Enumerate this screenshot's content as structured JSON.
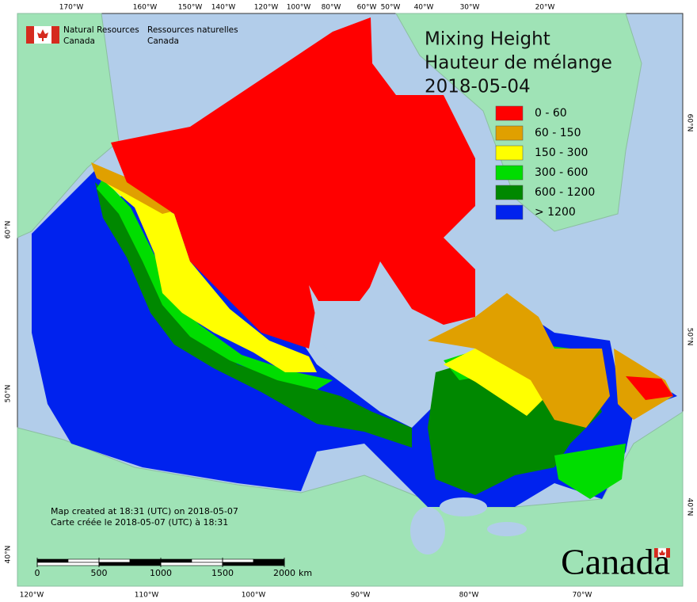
{
  "agency_en": [
    "Natural Resources",
    "Canada"
  ],
  "agency_fr": [
    "Ressources naturelles",
    "Canada"
  ],
  "title": [
    "Mixing Height",
    "Hauteur de mélange",
    "2018-05-04"
  ],
  "legend": [
    {
      "label": "0 - 60",
      "color": "#ff0000"
    },
    {
      "label": "60 - 150",
      "color": "#e0a000"
    },
    {
      "label": "150 - 300",
      "color": "#ffff00"
    },
    {
      "label": "300 - 600",
      "color": "#00dd00"
    },
    {
      "label": "600 - 1200",
      "color": "#008800"
    },
    {
      "label": "> 1200",
      "color": "#0022ee"
    }
  ],
  "graticule": {
    "top": [
      "170°W",
      "160°W",
      "150°W",
      "140°W",
      "120°W",
      "100°W",
      "80°W",
      "60°W",
      "50°W",
      "40°W",
      "30°W",
      "20°W"
    ],
    "bottom": [
      "120°W",
      "110°W",
      "100°W",
      "90°W",
      "80°W",
      "70°W"
    ],
    "left": [
      "60°N",
      "50°N",
      "40°N"
    ],
    "right": [
      "60°N",
      "50°N",
      "40°N"
    ]
  },
  "notes": [
    "Map created at 18:31 (UTC) on 2018-05-07",
    "Carte créée le 2018-05-07 (UTC) à 18:31"
  ],
  "scale": {
    "ticks": [
      0,
      500,
      1000,
      1500,
      2000
    ],
    "unit": "km"
  },
  "wordmark": "Canada"
}
